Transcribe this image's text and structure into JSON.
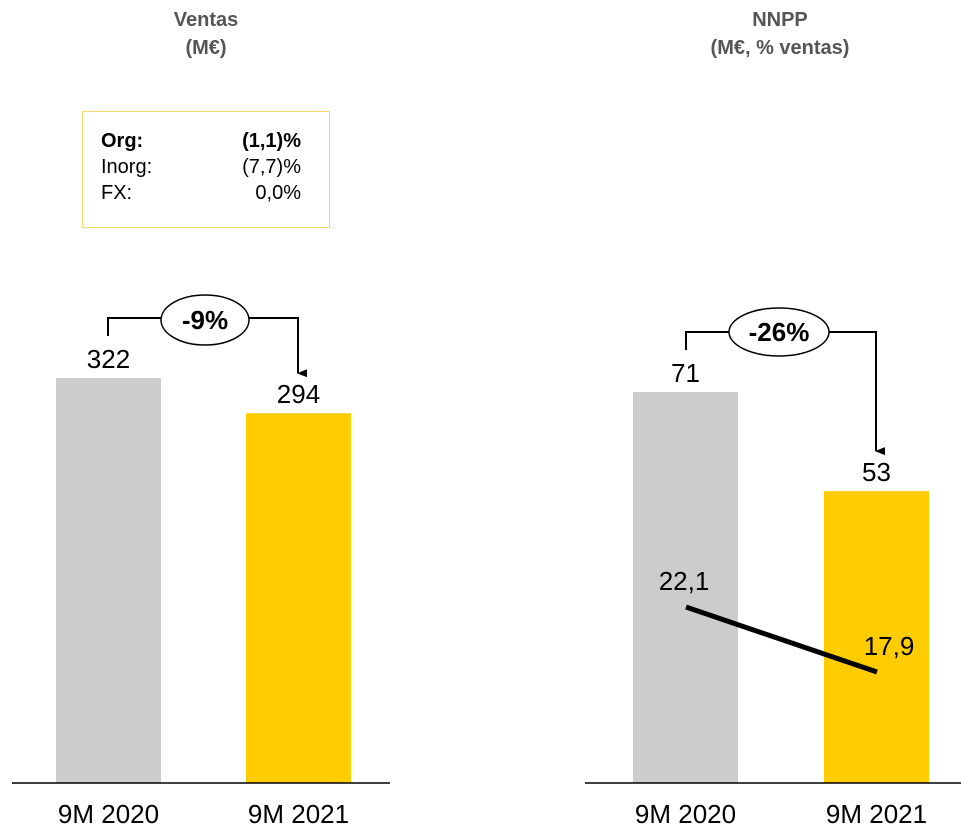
{
  "chart_data": [
    {
      "type": "bar",
      "title": "Ventas",
      "subtitle": "(M€)",
      "categories": [
        "9M 2020",
        "9M 2021"
      ],
      "values": [
        322,
        294
      ],
      "value_labels": [
        "322",
        "294"
      ],
      "bar_colors": [
        "#cccccc",
        "#ffcc00"
      ],
      "change_label": "-9%",
      "breakdown": [
        {
          "label": "Org:",
          "value": "(1,1)%",
          "bold": true
        },
        {
          "label": "Inorg:",
          "value": "(7,7)%",
          "bold": false
        },
        {
          "label": "FX:",
          "value": "0,0%",
          "bold": false
        }
      ]
    },
    {
      "type": "bar",
      "title": "NNPP",
      "subtitle": "(M€, % ventas)",
      "categories": [
        "9M 2020",
        "9M 2021"
      ],
      "values": [
        71,
        53
      ],
      "value_labels": [
        "71",
        "53"
      ],
      "bar_colors": [
        "#cccccc",
        "#ffcc00"
      ],
      "change_label": "-26%",
      "line_series": {
        "values": [
          22.1,
          17.9
        ],
        "value_labels": [
          "22,1",
          "17,9"
        ],
        "color": "#000000"
      }
    }
  ]
}
